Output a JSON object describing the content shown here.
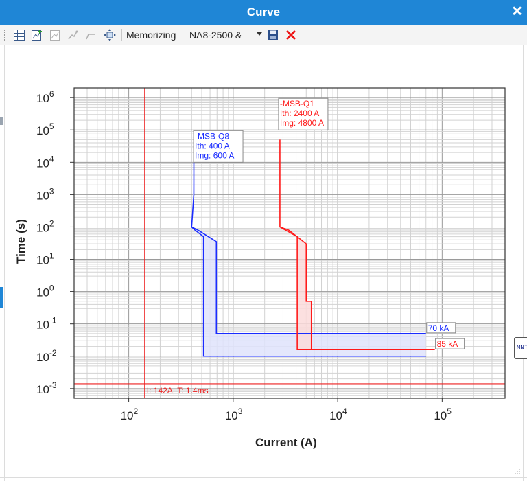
{
  "window": {
    "title": "Curve",
    "close_glyph": "✕"
  },
  "toolbar": {
    "icons": [
      "grid-icon",
      "add-curve-icon",
      "copy-curve-icon",
      "curve-edit-icon",
      "curve-remove-icon",
      "fit-view-icon"
    ],
    "memorizing_label": "Memorizing",
    "memorized_value": "NA8-2500 &",
    "save_icon": "save-icon",
    "delete_icon": "delete-icon"
  },
  "side_tooltip": {
    "text": "MNI"
  },
  "chart_data": {
    "type": "line",
    "xlabel": "Current (A)",
    "ylabel": "Time (s)",
    "x_scale": "log",
    "y_scale": "log",
    "xlim": [
      30,
      400000
    ],
    "ylim": [
      0.0005,
      2000000
    ],
    "x_ticks": [
      100,
      1000,
      10000,
      100000
    ],
    "x_tick_labels": [
      {
        "base": "10",
        "exp": "2"
      },
      {
        "base": "10",
        "exp": "3"
      },
      {
        "base": "10",
        "exp": "4"
      },
      {
        "base": "10",
        "exp": "5"
      }
    ],
    "y_ticks": [
      0.001,
      0.01,
      0.1,
      1,
      10,
      100,
      1000,
      10000,
      100000,
      1000000
    ],
    "y_tick_labels": [
      {
        "base": "10",
        "exp": "-3"
      },
      {
        "base": "10",
        "exp": "-2"
      },
      {
        "base": "10",
        "exp": "-1"
      },
      {
        "base": "10",
        "exp": "0"
      },
      {
        "base": "10",
        "exp": "1"
      },
      {
        "base": "10",
        "exp": "2"
      },
      {
        "base": "10",
        "exp": "3"
      },
      {
        "base": "10",
        "exp": "4"
      },
      {
        "base": "10",
        "exp": "5"
      },
      {
        "base": "10",
        "exp": "6"
      }
    ],
    "grid": true,
    "series": [
      {
        "color": "#1a2cff",
        "fill": "#dfe3fb",
        "label_lines": [
          "-MSB-Q8",
          "Ith: 400 A",
          "Img: 600 A"
        ],
        "label_anchor": [
          430,
          10000
        ],
        "end_label": "70 kA",
        "end_label_anchor": [
          70000,
          0.05
        ],
        "upper": [
          [
            420,
            10000
          ],
          [
            420,
            1000
          ],
          [
            400,
            100
          ],
          [
            460,
            80
          ],
          [
            690,
            35
          ],
          [
            690,
            0.05
          ],
          [
            70000,
            0.05
          ]
        ],
        "lower": [
          [
            400,
            100
          ],
          [
            430,
            80
          ],
          [
            520,
            50
          ],
          [
            520,
            0.01
          ],
          [
            70000,
            0.01
          ]
        ]
      },
      {
        "color": "#ff1a1a",
        "fill": "#fbdada",
        "label_lines": [
          "-MSB-Q1",
          "Ith: 2400 A",
          "Img: 4800 A"
        ],
        "label_anchor": [
          2800,
          100000
        ],
        "end_label": "85 kA",
        "end_label_anchor": [
          85000,
          0.016
        ],
        "upper": [
          [
            2800,
            50000
          ],
          [
            2800,
            100
          ],
          [
            3400,
            80
          ],
          [
            5000,
            30
          ],
          [
            5000,
            0.5
          ],
          [
            5600,
            0.5
          ],
          [
            5600,
            0.016
          ],
          [
            85000,
            0.016
          ]
        ],
        "lower": [
          [
            2800,
            100
          ],
          [
            4100,
            50
          ],
          [
            4100,
            0.016
          ],
          [
            85000,
            0.016
          ]
        ]
      }
    ],
    "cursor": {
      "x": 142,
      "y": 0.0014,
      "label": "I: 142A, T: 1.4ms",
      "color": "#ee2222"
    }
  }
}
